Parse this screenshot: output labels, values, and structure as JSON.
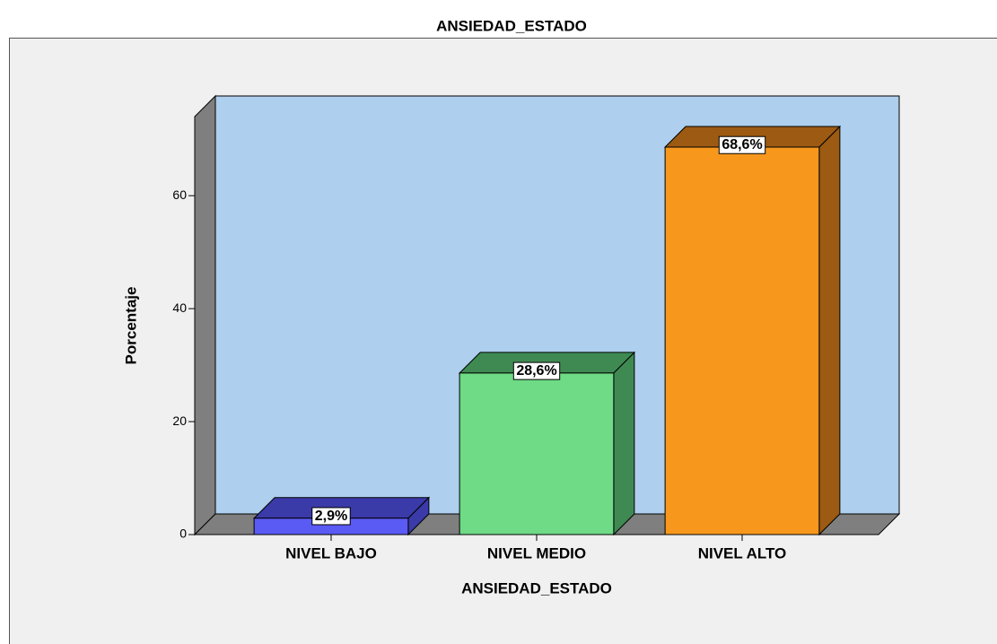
{
  "chart_data": {
    "type": "bar3d",
    "title": "ANSIEDAD_ESTADO",
    "x_label": "ANSIEDAD_ESTADO",
    "y_label": "Porcentaje",
    "categories": [
      "NIVEL BAJO",
      "NIVEL MEDIO",
      "NIVEL ALTO"
    ],
    "values": [
      2.9,
      28.6,
      68.6
    ],
    "value_labels": [
      "2,9%",
      "28,6%",
      "68,6%"
    ],
    "colors": [
      "#5a5af5",
      "#6fdb86",
      "#f7981d"
    ],
    "shade_colors": [
      "#3a3aa8",
      "#3f8a52",
      "#9c5a12"
    ],
    "ylim": [
      0,
      74
    ],
    "yticks": [
      0,
      20,
      40,
      60
    ],
    "grid": false
  }
}
